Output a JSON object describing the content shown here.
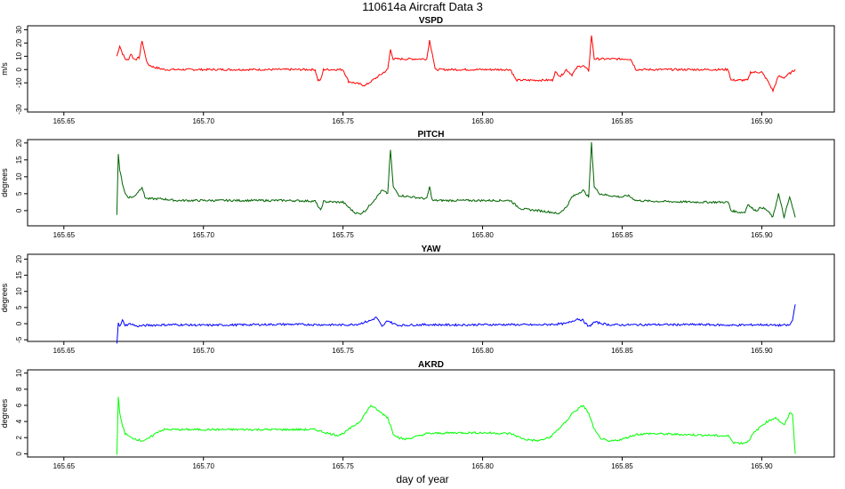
{
  "figure": {
    "title": "110614a   Aircraft Data 3",
    "xlabel": "day of year"
  },
  "chart_data": [
    {
      "type": "line",
      "title": "VSPD",
      "xlabel": "",
      "ylabel": "m/s",
      "color": "#ff0000",
      "xlim": [
        165.637,
        165.926
      ],
      "ylim": [
        -32,
        33
      ],
      "xticks": [
        165.65,
        165.7,
        165.75,
        165.8,
        165.85,
        165.9
      ],
      "xtick_labels": [
        "165.65",
        "165.70",
        "165.75",
        "165.80",
        "165.85",
        "165.90"
      ],
      "yticks": [
        -30,
        -10,
        0,
        10,
        20,
        30
      ],
      "ytick_labels": [
        "-30",
        "-10",
        "0",
        "10",
        "20",
        "30"
      ],
      "x": [
        165.669,
        165.67,
        165.671,
        165.672,
        165.673,
        165.674,
        165.675,
        165.676,
        165.677,
        165.678,
        165.679,
        165.68,
        165.682,
        165.684,
        165.686,
        165.69,
        165.7,
        165.71,
        165.72,
        165.73,
        165.74,
        165.741,
        165.742,
        165.743,
        165.744,
        165.745,
        165.748,
        165.75,
        165.752,
        165.754,
        165.756,
        165.758,
        165.76,
        165.762,
        165.764,
        165.766,
        165.767,
        165.768,
        165.77,
        165.775,
        165.78,
        165.781,
        165.782,
        165.783,
        165.79,
        165.8,
        165.81,
        165.812,
        165.813,
        165.815,
        165.82,
        165.825,
        165.826,
        165.828,
        165.83,
        165.832,
        165.834,
        165.836,
        165.838,
        165.839,
        165.84,
        165.842,
        165.845,
        165.85,
        165.853,
        165.855,
        165.86,
        165.87,
        165.88,
        165.888,
        165.889,
        165.892,
        165.894,
        165.895,
        165.896,
        165.898,
        165.9,
        165.902,
        165.904,
        165.906,
        165.908,
        165.91,
        165.912
      ],
      "y": [
        10,
        18,
        12,
        8,
        7,
        12,
        8,
        8,
        9,
        22,
        12,
        4,
        2,
        1,
        0,
        0,
        0,
        0,
        0,
        0,
        0,
        -8,
        -8,
        0,
        0,
        0,
        0,
        0,
        -9,
        -10,
        -11,
        -12,
        -9,
        -6,
        -3,
        0,
        15,
        8,
        8,
        8,
        8,
        22,
        12,
        0,
        0,
        0,
        0,
        -8,
        -8,
        -8,
        -8,
        -8,
        -2,
        -5,
        0,
        -4,
        2,
        3,
        -1,
        26,
        8,
        8,
        8,
        8,
        8,
        0,
        0,
        0,
        0,
        0,
        -8,
        -8,
        -8,
        -8,
        -2,
        -2,
        -2,
        -8,
        -16,
        -5,
        -6,
        -3,
        0
      ]
    },
    {
      "type": "line",
      "title": "PITCH",
      "xlabel": "",
      "ylabel": "degrees",
      "color": "#006400",
      "xlim": [
        165.637,
        165.926
      ],
      "ylim": [
        -4.5,
        21
      ],
      "xticks": [
        165.65,
        165.7,
        165.75,
        165.8,
        165.85,
        165.9
      ],
      "xtick_labels": [
        "165.65",
        "165.70",
        "165.75",
        "165.80",
        "165.85",
        "165.90"
      ],
      "yticks": [
        0,
        5,
        10,
        15,
        20
      ],
      "ytick_labels": [
        "0",
        "5",
        "10",
        "15",
        "20"
      ],
      "x": [
        165.669,
        165.6695,
        165.67,
        165.671,
        165.672,
        165.673,
        165.675,
        165.678,
        165.679,
        165.68,
        165.685,
        165.69,
        165.7,
        165.71,
        165.72,
        165.73,
        165.74,
        165.742,
        165.743,
        165.744,
        165.745,
        165.748,
        165.75,
        165.752,
        165.754,
        165.756,
        165.758,
        165.76,
        165.762,
        165.764,
        165.766,
        165.767,
        165.768,
        165.77,
        165.775,
        165.78,
        165.781,
        165.782,
        165.79,
        165.8,
        165.81,
        165.812,
        165.814,
        165.82,
        165.825,
        165.827,
        165.83,
        165.832,
        165.834,
        165.836,
        165.838,
        165.839,
        165.84,
        165.842,
        165.845,
        165.85,
        165.852,
        165.855,
        165.86,
        165.87,
        165.88,
        165.888,
        165.889,
        165.892,
        165.894,
        165.895,
        165.896,
        165.898,
        165.9,
        165.902,
        165.904,
        165.906,
        165.908,
        165.91,
        165.912
      ],
      "y": [
        -1,
        17,
        12,
        8,
        5,
        4,
        4,
        7,
        4,
        3.5,
        3.5,
        3,
        3,
        3,
        3,
        3,
        2.8,
        0,
        2.7,
        2.6,
        2.6,
        2.5,
        2.5,
        1,
        -0.5,
        -1,
        0,
        2,
        4,
        6,
        5,
        18,
        7,
        4.5,
        4,
        3.5,
        7,
        3,
        3,
        3,
        3,
        1.5,
        0.5,
        0,
        -0.5,
        -1,
        1,
        4,
        5,
        6,
        4,
        20,
        7,
        5,
        4.5,
        4,
        4.5,
        3,
        2.8,
        2.6,
        2.5,
        2.5,
        0,
        -0.5,
        -0.5,
        2,
        1,
        0,
        1,
        0,
        -2,
        5,
        -2,
        4,
        -2
      ]
    },
    {
      "type": "line",
      "title": "YAW",
      "xlabel": "",
      "ylabel": "degrees",
      "color": "#0000ff",
      "xlim": [
        165.637,
        165.926
      ],
      "ylim": [
        -5.5,
        21.5
      ],
      "xticks": [
        165.65,
        165.7,
        165.75,
        165.8,
        165.85,
        165.9
      ],
      "xtick_labels": [
        "165.65",
        "165.70",
        "165.75",
        "165.80",
        "165.85",
        "165.90"
      ],
      "yticks": [
        -5,
        0,
        5,
        10,
        15,
        20
      ],
      "ytick_labels": [
        "-5",
        "0",
        "5",
        "10",
        "15",
        "20"
      ],
      "x": [
        165.669,
        165.6695,
        165.67,
        165.671,
        165.672,
        165.674,
        165.676,
        165.68,
        165.69,
        165.7,
        165.71,
        165.72,
        165.73,
        165.74,
        165.75,
        165.755,
        165.758,
        165.76,
        165.762,
        165.764,
        165.766,
        165.768,
        165.77,
        165.78,
        165.79,
        165.8,
        165.81,
        165.82,
        165.825,
        165.83,
        165.834,
        165.836,
        165.838,
        165.84,
        165.845,
        165.85,
        165.86,
        165.87,
        165.88,
        165.89,
        165.9,
        165.905,
        165.91,
        165.911,
        165.912
      ],
      "y": [
        -6,
        0.5,
        -1,
        1,
        -0.5,
        0,
        -0.8,
        -0.5,
        -0.3,
        -0.5,
        -0.4,
        -0.3,
        -0.2,
        -0.3,
        -0.4,
        -0.2,
        0.5,
        1,
        2,
        -1,
        1,
        0,
        -0.5,
        -0.3,
        -0.4,
        -0.3,
        -0.3,
        -0.4,
        -0.2,
        0,
        1.5,
        1,
        -1,
        0.5,
        -0.3,
        -0.4,
        -0.3,
        -0.3,
        -0.3,
        -0.5,
        -0.3,
        -0.5,
        -0.5,
        1,
        6
      ]
    },
    {
      "type": "line",
      "title": "AKRD",
      "xlabel": "",
      "ylabel": "degrees",
      "color": "#00ff00",
      "xlim": [
        165.637,
        165.926
      ],
      "ylim": [
        -0.4,
        10.4
      ],
      "xticks": [
        165.65,
        165.7,
        165.75,
        165.8,
        165.85,
        165.9
      ],
      "xtick_labels": [
        "165.65",
        "165.70",
        "165.75",
        "165.80",
        "165.85",
        "165.90"
      ],
      "yticks": [
        0,
        2,
        4,
        6,
        8,
        10
      ],
      "ytick_labels": [
        "0",
        "2",
        "4",
        "6",
        "8",
        "10"
      ],
      "x": [
        165.669,
        165.6695,
        165.67,
        165.671,
        165.672,
        165.674,
        165.676,
        165.678,
        165.68,
        165.682,
        165.684,
        165.686,
        165.69,
        165.7,
        165.71,
        165.72,
        165.73,
        165.74,
        165.745,
        165.748,
        165.75,
        165.752,
        165.754,
        165.756,
        165.758,
        165.76,
        165.762,
        165.764,
        165.766,
        165.768,
        165.77,
        165.772,
        165.775,
        165.78,
        165.79,
        165.8,
        165.81,
        165.815,
        165.82,
        165.824,
        165.827,
        165.83,
        165.832,
        165.834,
        165.836,
        165.838,
        165.84,
        165.842,
        165.845,
        165.85,
        165.855,
        165.86,
        165.87,
        165.88,
        165.888,
        165.89,
        165.893,
        165.895,
        165.897,
        165.9,
        165.902,
        165.905,
        165.908,
        165.91,
        165.911,
        165.912
      ],
      "y": [
        0,
        7,
        5,
        3.5,
        2.5,
        2,
        1.8,
        1.6,
        1.8,
        2.3,
        2.8,
        3,
        3,
        3,
        3,
        3,
        3,
        3,
        2.5,
        2.3,
        2.5,
        3,
        3.5,
        4,
        5,
        6,
        5.5,
        5,
        4.5,
        2.5,
        2,
        1.8,
        2,
        2.5,
        2.6,
        2.6,
        2.5,
        1.8,
        1.6,
        2,
        3,
        4,
        5,
        5.5,
        6,
        5,
        3,
        2,
        1.5,
        1.8,
        2.4,
        2.5,
        2.4,
        2.3,
        2.2,
        1.4,
        1.3,
        1.5,
        2.5,
        3.5,
        4,
        4.5,
        3.5,
        5,
        5,
        0
      ]
    }
  ]
}
